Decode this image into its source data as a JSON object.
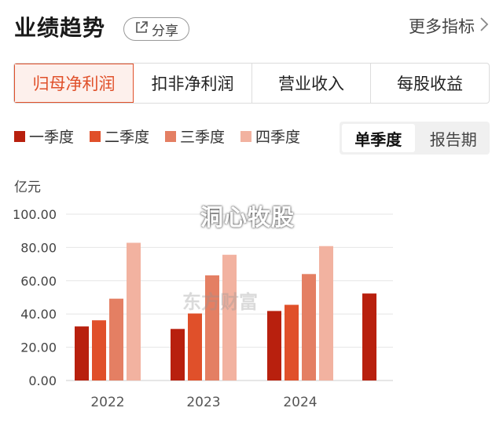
{
  "header": {
    "title": "业绩趋势",
    "share_label": "分享",
    "more_label": "更多指标"
  },
  "tabs": [
    {
      "label": "归母净利润",
      "active": true
    },
    {
      "label": "扣非净利润",
      "active": false
    },
    {
      "label": "营业收入",
      "active": false
    },
    {
      "label": "每股收益",
      "active": false
    }
  ],
  "period_toggle": [
    {
      "label": "单季度",
      "active": true
    },
    {
      "label": "报告期",
      "active": false
    }
  ],
  "watermark": "洞心牧股",
  "logo_watermark": "东方财富",
  "colors": {
    "accent": "#e0502a",
    "q1": "#b8200e",
    "q2": "#e0502a",
    "q3": "#e47f63",
    "q4": "#f2b2a0"
  },
  "chart_data": {
    "type": "bar",
    "unit_label": "亿元",
    "categories": [
      "2022",
      "2023",
      "2024",
      ""
    ],
    "series": [
      {
        "name": "一季度",
        "values": [
          32.5,
          31.0,
          41.8,
          52.3
        ]
      },
      {
        "name": "二季度",
        "values": [
          36.2,
          40.3,
          45.5,
          null
        ]
      },
      {
        "name": "三季度",
        "values": [
          49.2,
          63.2,
          64.0,
          null
        ]
      },
      {
        "name": "四季度",
        "values": [
          82.8,
          75.6,
          80.8,
          null
        ]
      }
    ],
    "yticks": [
      "0.00",
      "20.00",
      "40.00",
      "60.00",
      "80.00",
      "100.00"
    ],
    "ylim": [
      0,
      100
    ],
    "grid": true,
    "legend": "top-left"
  }
}
